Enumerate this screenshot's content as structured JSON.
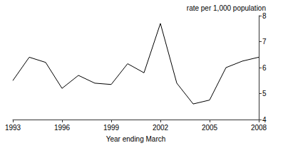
{
  "chart_data": {
    "type": "line",
    "x_label": "Year ending March",
    "y_label": "rate per 1,000 population",
    "x": [
      1993,
      1994,
      1995,
      1996,
      1997,
      1998,
      1999,
      2000,
      2001,
      2002,
      2003,
      2004,
      2005,
      2006,
      2007,
      2008
    ],
    "values": [
      5.5,
      6.4,
      6.2,
      5.2,
      5.7,
      5.4,
      5.35,
      6.15,
      5.8,
      7.7,
      5.4,
      4.6,
      4.75,
      6.0,
      6.25,
      6.4
    ],
    "color": "#000000",
    "xlim": [
      1993,
      2008
    ],
    "xticks": [
      1993,
      1996,
      1999,
      2002,
      2005,
      2008
    ],
    "ylim": [
      4,
      8
    ],
    "yticks": [
      4,
      5,
      6,
      7,
      8
    ],
    "grid": false
  }
}
